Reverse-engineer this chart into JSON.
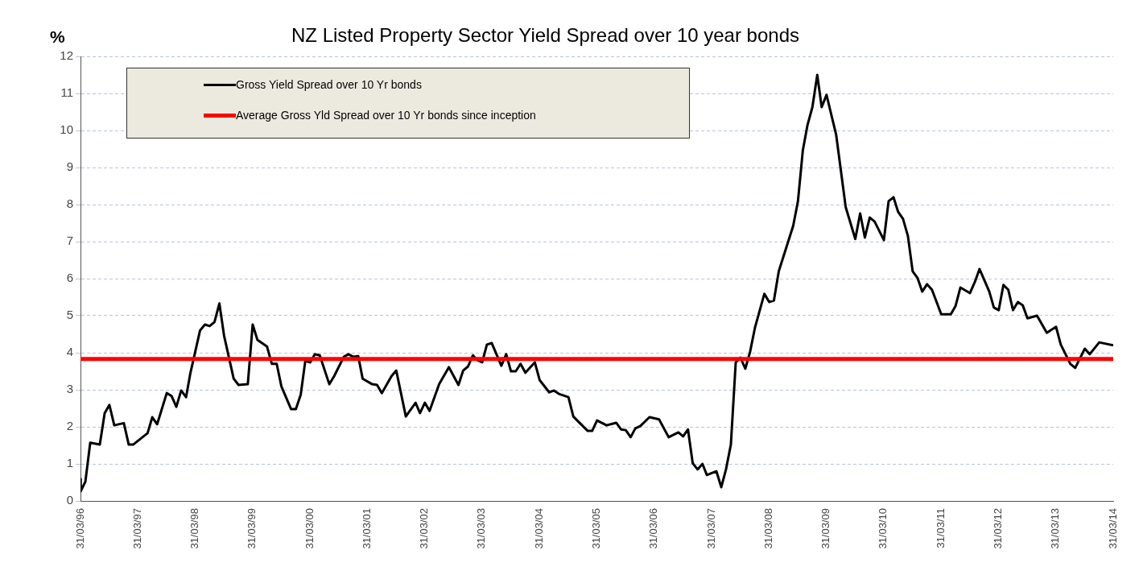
{
  "chart_data": {
    "type": "line",
    "title": "NZ Listed Property Sector Yield Spread over 10 year bonds",
    "ylabel": "%",
    "xlim": [
      "1996-03-31",
      "2014-03-31"
    ],
    "xticks": [
      {
        "value": "1996-03-31",
        "label": "31/03/96"
      },
      {
        "value": "1997-03-31",
        "label": "31/03/97"
      },
      {
        "value": "1998-03-31",
        "label": "31/03/98"
      },
      {
        "value": "1999-03-31",
        "label": "31/03/99"
      },
      {
        "value": "2000-03-31",
        "label": "31/03/00"
      },
      {
        "value": "2001-03-31",
        "label": "31/03/01"
      },
      {
        "value": "2002-03-31",
        "label": "31/03/02"
      },
      {
        "value": "2003-03-31",
        "label": "31/03/03"
      },
      {
        "value": "2004-03-31",
        "label": "31/03/04"
      },
      {
        "value": "2005-03-31",
        "label": "31/03/05"
      },
      {
        "value": "2006-03-31",
        "label": "31/03/06"
      },
      {
        "value": "2007-03-31",
        "label": "31/03/07"
      },
      {
        "value": "2008-03-31",
        "label": "31/03/08"
      },
      {
        "value": "2009-03-31",
        "label": "31/03/09"
      },
      {
        "value": "2010-03-31",
        "label": "31/03/10"
      },
      {
        "value": "2011-03-31",
        "label": "31/03/11"
      },
      {
        "value": "2012-03-31",
        "label": "31/03/12"
      },
      {
        "value": "2013-03-31",
        "label": "31/03/13"
      },
      {
        "value": "2014-03-31",
        "label": "31/03/14"
      }
    ],
    "ylim": [
      0,
      12
    ],
    "yticks": [
      0,
      1,
      2,
      3,
      4,
      5,
      6,
      7,
      8,
      9,
      10,
      11,
      12
    ],
    "grid": "y",
    "legend": "top left",
    "marker": "none",
    "line_style": "solid",
    "series": [
      {
        "name": "Gross Yield Spread over 10 Yr bonds",
        "color": "#000000",
        "x": [
          "1996-03-31",
          "1996-04",
          "1996-05",
          "1996-06",
          "1996-08",
          "1996-09",
          "1996-10",
          "1996-11",
          "1997-01",
          "1997-02",
          "1997-03",
          "1997-06",
          "1997-07",
          "1997-08",
          "1997-10",
          "1997-11",
          "1997-12",
          "1998-01",
          "1998-02",
          "1998-03",
          "1998-05",
          "1998-06",
          "1998-07",
          "1998-08",
          "1998-09",
          "1998-10",
          "1998-12",
          "1999-01",
          "1999-03",
          "1999-04",
          "1999-05",
          "1999-07",
          "1999-08",
          "1999-09",
          "1999-10",
          "1999-12",
          "2000-01",
          "2000-02",
          "2000-03",
          "2000-04",
          "2000-05",
          "2000-06",
          "2000-08",
          "2000-09",
          "2000-11",
          "2000-12",
          "2001-01",
          "2001-02",
          "2001-03",
          "2001-05",
          "2001-06",
          "2001-07",
          "2001-09",
          "2001-10",
          "2001-12",
          "2002-02",
          "2002-03",
          "2002-04",
          "2002-05",
          "2002-07",
          "2002-09",
          "2002-11",
          "2002-12",
          "2003-01",
          "2003-02",
          "2003-03",
          "2003-04",
          "2003-05",
          "2003-06",
          "2003-08",
          "2003-09",
          "2003-10",
          "2003-11",
          "2003-12",
          "2004-01",
          "2004-03",
          "2004-04",
          "2004-06",
          "2004-07",
          "2004-08",
          "2004-10",
          "2004-11",
          "2004-12",
          "2005-02",
          "2005-03",
          "2005-04",
          "2005-06",
          "2005-08",
          "2005-09",
          "2005-10",
          "2005-11",
          "2005-12",
          "2006-01",
          "2006-03",
          "2006-05",
          "2006-07",
          "2006-09",
          "2006-10",
          "2006-11",
          "2006-12",
          "2007-01",
          "2007-02",
          "2007-03",
          "2007-05",
          "2007-06",
          "2007-07",
          "2007-08",
          "2007-09",
          "2007-10",
          "2007-11",
          "2007-12",
          "2008-01",
          "2008-03",
          "2008-04",
          "2008-05",
          "2008-06",
          "2008-09",
          "2008-10",
          "2008-11",
          "2008-12",
          "2009-01",
          "2009-02",
          "2009-03",
          "2009-04",
          "2009-06",
          "2009-08",
          "2009-10",
          "2009-11",
          "2009-12",
          "2010-01",
          "2010-02",
          "2010-04",
          "2010-05",
          "2010-06",
          "2010-07",
          "2010-08",
          "2010-09",
          "2010-10",
          "2010-11",
          "2010-12",
          "2011-01",
          "2011-02",
          "2011-04",
          "2011-06",
          "2011-07",
          "2011-08",
          "2011-10",
          "2011-11",
          "2011-12",
          "2012-02",
          "2012-03",
          "2012-04",
          "2012-05",
          "2012-06",
          "2012-07",
          "2012-08",
          "2012-09",
          "2012-10",
          "2012-12",
          "2013-02",
          "2013-04",
          "2013-05",
          "2013-07",
          "2013-08",
          "2013-10",
          "2013-11",
          "2014-01",
          "2014-03-31"
        ],
        "values": [
          0.59,
          0.26,
          0.52,
          1.57,
          1.52,
          2.37,
          2.59,
          2.04,
          2.1,
          1.52,
          1.52,
          1.83,
          2.26,
          2.07,
          2.91,
          2.83,
          2.54,
          2.98,
          2.8,
          3.46,
          4.6,
          4.76,
          4.72,
          4.83,
          5.33,
          4.46,
          3.3,
          3.13,
          3.15,
          4.76,
          4.35,
          4.17,
          3.7,
          3.7,
          3.09,
          2.48,
          2.48,
          2.87,
          3.78,
          3.74,
          3.96,
          3.93,
          3.15,
          3.37,
          3.89,
          3.96,
          3.89,
          3.91,
          3.3,
          3.15,
          3.13,
          2.91,
          3.37,
          3.52,
          2.28,
          2.65,
          2.37,
          2.65,
          2.43,
          3.15,
          3.61,
          3.13,
          3.52,
          3.63,
          3.93,
          3.8,
          3.74,
          4.22,
          4.26,
          3.65,
          3.96,
          3.5,
          3.5,
          3.7,
          3.46,
          3.74,
          3.26,
          2.93,
          2.98,
          2.89,
          2.8,
          2.28,
          2.15,
          1.89,
          1.89,
          2.17,
          2.04,
          2.11,
          1.93,
          1.91,
          1.72,
          1.96,
          2.02,
          2.26,
          2.2,
          1.72,
          1.85,
          1.74,
          1.93,
          1.02,
          0.85,
          1.0,
          0.7,
          0.8,
          0.37,
          0.85,
          1.52,
          3.74,
          3.87,
          3.57,
          4.02,
          4.67,
          5.59,
          5.37,
          5.41,
          6.2,
          7.43,
          8.09,
          9.46,
          10.15,
          10.63,
          11.5,
          10.63,
          10.96,
          9.89,
          7.93,
          7.07,
          7.76,
          7.11,
          7.65,
          7.54,
          7.04,
          8.09,
          8.2,
          7.8,
          7.61,
          7.15,
          6.2,
          6.02,
          5.65,
          5.85,
          5.7,
          5.04,
          5.04,
          5.26,
          5.76,
          5.61,
          5.91,
          6.26,
          5.65,
          5.22,
          5.15,
          5.83,
          5.7,
          5.15,
          5.37,
          5.28,
          4.93,
          5.0,
          4.54,
          4.7,
          4.22,
          3.7,
          3.59,
          4.11,
          3.96,
          4.28,
          4.2
        ]
      },
      {
        "name": "Average Gross Yld Spread over 10 Yr bonds since inception",
        "color": "#ff0000",
        "x": [
          "1996-03-31",
          "2014-03-31"
        ],
        "values": [
          3.83,
          3.83
        ]
      }
    ]
  }
}
